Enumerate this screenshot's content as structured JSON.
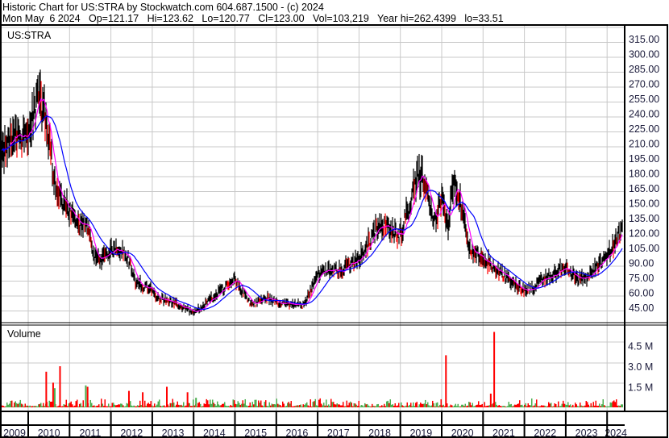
{
  "header": {
    "line1": "Historic Chart for US:STRA by Stockwatch.com 604.687.1500 - (c) 2024",
    "line2": "Mon May  6 2024   Op=121.17   Hi=123.62   Lo=120.77   Cl=123.00   Vol=103,219   Year hi=262.4399   lo=33.51"
  },
  "chart_data": [
    {
      "type": "line",
      "title": "US:STRA",
      "symbol": "US:STRA",
      "price_axis": {
        "ylim": [
          33,
          325
        ],
        "ticks": [
          "315.00",
          "300.00",
          "285.00",
          "270.00",
          "255.00",
          "240.00",
          "225.00",
          "210.00",
          "195.00",
          "180.00",
          "165.00",
          "150.00",
          "135.00",
          "120.00",
          "105.00",
          "90.00",
          "75.00",
          "60.00",
          "45.00"
        ],
        "position": "right"
      },
      "x_axis": {
        "range": [
          "2009-04",
          "2024-05"
        ],
        "ticks": [
          "2009",
          "2010",
          "2011",
          "2012",
          "2013",
          "2014",
          "2015",
          "2016",
          "2017",
          "2018",
          "2019",
          "2020",
          "2021",
          "2022",
          "2023",
          "2024"
        ]
      },
      "grid": true,
      "series": [
        {
          "style": "price-bars",
          "colors": {
            "up": "#000000",
            "down": "#ff0000"
          },
          "approx_close": [
            [
              "2009-04",
              192
            ],
            [
              "2009-09",
              220
            ],
            [
              "2010-01",
              216
            ],
            [
              "2010-03",
              245
            ],
            [
              "2010-04",
              257
            ],
            [
              "2010-06",
              236
            ],
            [
              "2010-09",
              167
            ],
            [
              "2010-10",
              159
            ],
            [
              "2011-01",
              139
            ],
            [
              "2011-03",
              127
            ],
            [
              "2011-06",
              131
            ],
            [
              "2011-08",
              95
            ],
            [
              "2011-11",
              95
            ],
            [
              "2012-01",
              103
            ],
            [
              "2012-03",
              107
            ],
            [
              "2012-06",
              95
            ],
            [
              "2012-08",
              70
            ],
            [
              "2013-01",
              62
            ],
            [
              "2013-03",
              54
            ],
            [
              "2013-07",
              50
            ],
            [
              "2014-01",
              39
            ],
            [
              "2014-05",
              50
            ],
            [
              "2014-09",
              62
            ],
            [
              "2015-01",
              74
            ],
            [
              "2015-03",
              62
            ],
            [
              "2015-06",
              47
            ],
            [
              "2015-10",
              55
            ],
            [
              "2016-01",
              50
            ],
            [
              "2016-05",
              47
            ],
            [
              "2016-09",
              47
            ],
            [
              "2017-01",
              78
            ],
            [
              "2017-04",
              82
            ],
            [
              "2017-08",
              82
            ],
            [
              "2018-01",
              94
            ],
            [
              "2018-04",
              111
            ],
            [
              "2018-07",
              131
            ],
            [
              "2018-11",
              119
            ],
            [
              "2019-01",
              119
            ],
            [
              "2019-04",
              151
            ],
            [
              "2019-06",
              180
            ],
            [
              "2019-08",
              171
            ],
            [
              "2019-11",
              131
            ],
            [
              "2020-01",
              155
            ],
            [
              "2020-03",
              123
            ],
            [
              "2020-04",
              171
            ],
            [
              "2020-06",
              159
            ],
            [
              "2020-09",
              103
            ],
            [
              "2021-01",
              95
            ],
            [
              "2021-04",
              86
            ],
            [
              "2021-08",
              74
            ],
            [
              "2022-01",
              62
            ],
            [
              "2022-04",
              66
            ],
            [
              "2022-07",
              74
            ],
            [
              "2023-01",
              86
            ],
            [
              "2023-04",
              74
            ],
            [
              "2023-07",
              74
            ],
            [
              "2023-10",
              86
            ],
            [
              "2024-01",
              98
            ],
            [
              "2024-03",
              107
            ],
            [
              "2024-05",
              123
            ]
          ]
        },
        {
          "style": "moving-average-short",
          "color": "#ff00ff"
        },
        {
          "style": "moving-average-long",
          "color": "#0000ff"
        }
      ]
    },
    {
      "type": "bar",
      "title": "Volume",
      "volume_axis": {
        "ylim": [
          0,
          6.2
        ],
        "unit": "M",
        "ticks": [
          "4.5 M",
          "3.0 M",
          "1.5 M"
        ],
        "tick_values": [
          4.5,
          3.0,
          1.5
        ]
      },
      "colors": {
        "up": "#4caf50",
        "down": "#ff0000"
      },
      "typical_volume_m": 0.3,
      "spikes": [
        [
          "2010-06",
          2.6,
          "down"
        ],
        [
          "2010-08",
          1.8,
          "down"
        ],
        [
          "2010-10",
          3.0,
          "down"
        ],
        [
          "2010-08",
          1.4,
          "up"
        ],
        [
          "2011-05",
          1.6,
          "up"
        ],
        [
          "2011-06",
          1.5,
          "down"
        ],
        [
          "2012-06",
          1.2,
          "down"
        ],
        [
          "2012-10",
          1.1,
          "down"
        ],
        [
          "2013-05",
          1.5,
          "down"
        ],
        [
          "2013-11",
          1.1,
          "down"
        ],
        [
          "2014-01",
          0.7,
          "up"
        ],
        [
          "2020-02",
          3.8,
          "down"
        ],
        [
          "2021-04",
          5.5,
          "down"
        ],
        [
          "2021-03",
          1.0,
          "down"
        ]
      ]
    }
  ]
}
